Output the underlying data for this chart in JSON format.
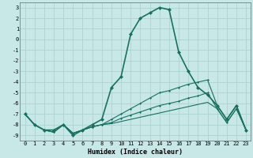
{
  "xlabel": "Humidex (Indice chaleur)",
  "bg_color": "#c8e8e8",
  "grid_color": "#a8cece",
  "line_color": "#1a7060",
  "xlim": [
    -0.5,
    23.5
  ],
  "ylim": [
    -9.5,
    3.5
  ],
  "xticks": [
    0,
    1,
    2,
    3,
    4,
    5,
    6,
    7,
    8,
    9,
    10,
    11,
    12,
    13,
    14,
    15,
    16,
    17,
    18,
    19,
    20,
    21,
    22,
    23
  ],
  "yticks": [
    3,
    2,
    1,
    0,
    -1,
    -2,
    -3,
    -4,
    -5,
    -6,
    -7,
    -8,
    -9
  ],
  "series": [
    {
      "x": [
        0,
        1,
        2,
        3,
        4,
        5,
        6,
        7,
        8,
        9,
        10,
        11,
        12,
        13,
        14,
        15,
        16,
        17,
        18,
        19,
        20,
        21,
        22,
        23
      ],
      "y": [
        -7,
        -8,
        -8.5,
        -8.5,
        -8,
        -9,
        -8.5,
        -8,
        -7.5,
        -4.5,
        -3.5,
        0.5,
        2,
        2.5,
        3,
        2.8,
        -1.2,
        -3,
        -4.5,
        -5.2,
        -6.2,
        -7.5,
        -6.2,
        -8.5
      ],
      "lw": 1.2,
      "ms": 2.5
    },
    {
      "x": [
        0,
        1,
        2,
        3,
        4,
        5,
        6,
        7,
        8,
        9,
        10,
        11,
        12,
        13,
        14,
        15,
        16,
        17,
        18,
        19,
        20,
        21,
        22,
        23
      ],
      "y": [
        -7,
        -8,
        -8.5,
        -8.7,
        -8,
        -8.8,
        -8.5,
        -8.2,
        -8.0,
        -7.5,
        -7.0,
        -6.5,
        -6.0,
        -5.5,
        -5.0,
        -4.8,
        -4.5,
        -4.2,
        -4.0,
        -3.8,
        -6.2,
        -7.5,
        -6.2,
        -8.5
      ],
      "lw": 0.8,
      "ms": 1.5
    },
    {
      "x": [
        0,
        1,
        2,
        3,
        4,
        5,
        6,
        7,
        8,
        9,
        10,
        11,
        12,
        13,
        14,
        15,
        16,
        17,
        18,
        19,
        20,
        21,
        22,
        23
      ],
      "y": [
        -7,
        -8,
        -8.5,
        -8.7,
        -8,
        -8.8,
        -8.5,
        -8.2,
        -8.0,
        -7.8,
        -7.4,
        -7.1,
        -6.8,
        -6.5,
        -6.2,
        -6.0,
        -5.8,
        -5.5,
        -5.3,
        -5.0,
        -6.5,
        -7.8,
        -6.5,
        -8.5
      ],
      "lw": 0.8,
      "ms": 1.5
    },
    {
      "x": [
        0,
        1,
        2,
        3,
        4,
        5,
        6,
        7,
        8,
        9,
        10,
        11,
        12,
        13,
        14,
        15,
        16,
        17,
        18,
        19,
        20,
        21,
        22,
        23
      ],
      "y": [
        -7,
        -8,
        -8.5,
        -8.7,
        -8,
        -8.8,
        -8.5,
        -8.2,
        -8.0,
        -7.9,
        -7.7,
        -7.5,
        -7.3,
        -7.1,
        -6.9,
        -6.7,
        -6.5,
        -6.3,
        -6.1,
        -5.9,
        -6.5,
        -7.8,
        -6.5,
        -8.5
      ],
      "lw": 0.8,
      "ms": 0.0
    }
  ]
}
